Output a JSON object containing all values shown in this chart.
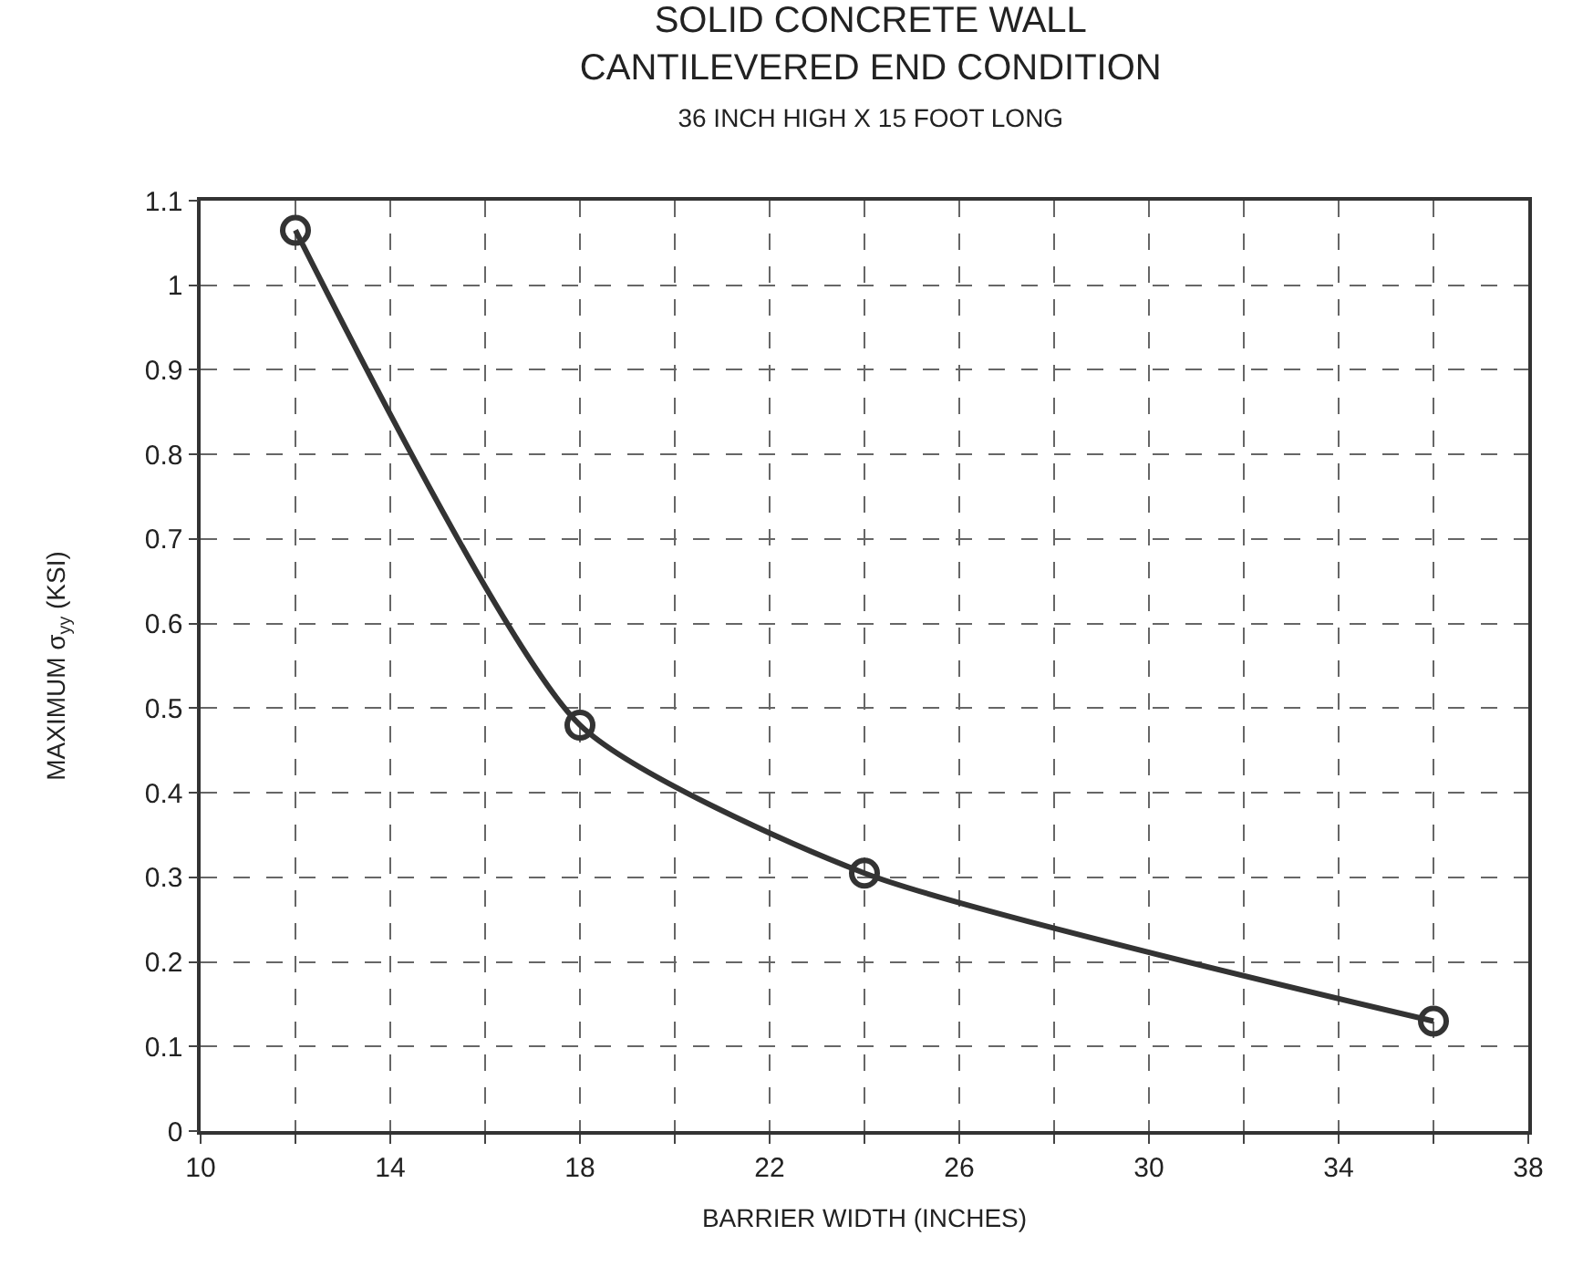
{
  "chart_data": {
    "type": "line",
    "title": "SOLID CONCRETE WALL\nCANTILEVERED END CONDITION",
    "subtitle": "36 INCH HIGH X 15 FOOT LONG",
    "xlabel": "BARRIER WIDTH (INCHES)",
    "ylabel": "MAXIMUM σ$_{yy}$ (KSI)",
    "x": [
      12,
      18,
      24,
      36
    ],
    "series": [
      {
        "color": "#333333",
        "values": [
          1.065,
          0.48,
          0.305,
          0.13
        ]
      }
    ],
    "xlim": [
      10,
      38
    ],
    "ylim": [
      0,
      1.1
    ],
    "xticks": [
      10,
      {
        "value": 12,
        "label": null
      },
      14,
      {
        "value": 16,
        "label": null
      },
      18,
      {
        "value": 20,
        "label": null
      },
      22,
      {
        "value": 24,
        "label": null
      },
      26,
      {
        "value": 28,
        "label": null
      },
      30,
      {
        "value": 32,
        "label": null
      },
      34,
      {
        "value": 36,
        "label": null
      },
      38
    ],
    "yticks": [
      0,
      0.1,
      0.2,
      0.3,
      0.4,
      0.5,
      0.6,
      0.7,
      0.8,
      0.9,
      1,
      1.1
    ],
    "grid": true,
    "marker": "circle",
    "line_style": "solid"
  }
}
